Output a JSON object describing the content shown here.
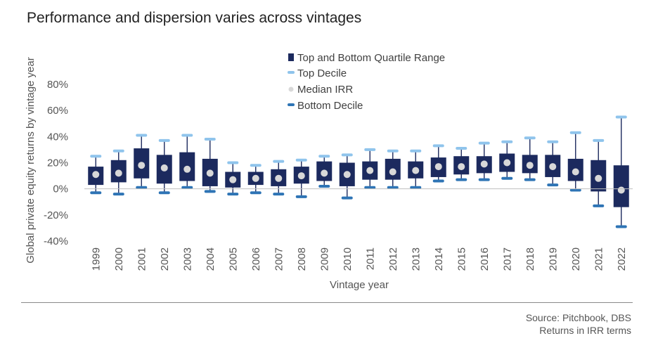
{
  "chart_data": {
    "type": "box",
    "title": "Performance and dispersion varies across vintages",
    "xlabel": "Vintage year",
    "ylabel": "Global private equity returns by vintage year",
    "ylim": [
      -40,
      80
    ],
    "yticks": [
      -40,
      -20,
      0,
      20,
      40,
      60,
      80
    ],
    "ytick_labels": [
      "-40%",
      "-20%",
      "0%",
      "20%",
      "40%",
      "60%",
      "80%"
    ],
    "legend": [
      {
        "key": "box",
        "label": "Top and Bottom Quartile Range"
      },
      {
        "key": "top",
        "label": "Top Decile"
      },
      {
        "key": "median",
        "label": "Median IRR"
      },
      {
        "key": "bottom",
        "label": "Bottom Decile"
      }
    ],
    "categories": [
      "1999",
      "2000",
      "2001",
      "2002",
      "2003",
      "2004",
      "2005",
      "2006",
      "2007",
      "2008",
      "2009",
      "2010",
      "2011",
      "2012",
      "2013",
      "2014",
      "2015",
      "2016",
      "2017",
      "2018",
      "2019",
      "2020",
      "2021",
      "2022"
    ],
    "series": [
      {
        "name": "Top Decile",
        "values": [
          25,
          29,
          41,
          37,
          41,
          38,
          20,
          18,
          21,
          22,
          25,
          26,
          30,
          29,
          29,
          33,
          31,
          35,
          36,
          39,
          36,
          43,
          37,
          55
        ]
      },
      {
        "name": "Top Quartile",
        "values": [
          17,
          22,
          31,
          26,
          28,
          23,
          13,
          13,
          15,
          17,
          21,
          20,
          21,
          23,
          21,
          24,
          25,
          25,
          27,
          26,
          26,
          23,
          22,
          18
        ]
      },
      {
        "name": "Median IRR",
        "values": [
          11,
          12,
          18,
          16,
          15,
          12,
          7,
          8,
          8,
          10,
          12,
          11,
          14,
          13,
          14,
          17,
          17,
          19,
          20,
          18,
          17,
          13,
          8,
          -1
        ]
      },
      {
        "name": "Bottom Quartile",
        "values": [
          3,
          5,
          8,
          4,
          6,
          2,
          1,
          3,
          2,
          4,
          6,
          2,
          7,
          7,
          8,
          9,
          11,
          12,
          13,
          12,
          9,
          6,
          -2,
          -14
        ]
      },
      {
        "name": "Bottom Decile",
        "values": [
          -3,
          -4,
          1,
          -3,
          1,
          -2,
          -4,
          -3,
          -4,
          -6,
          2,
          -7,
          1,
          1,
          1,
          6,
          7,
          7,
          8,
          7,
          3,
          -1,
          -13,
          -29
        ]
      }
    ],
    "colors": {
      "box": "#1c2a5e",
      "top": "#8fc4ec",
      "median": "#d8d8d8",
      "bottom": "#2e74b5",
      "axis": "#bfbfbf"
    }
  },
  "footer": {
    "source": "Source: Pitchbook, DBS",
    "note": "Returns in IRR terms"
  }
}
